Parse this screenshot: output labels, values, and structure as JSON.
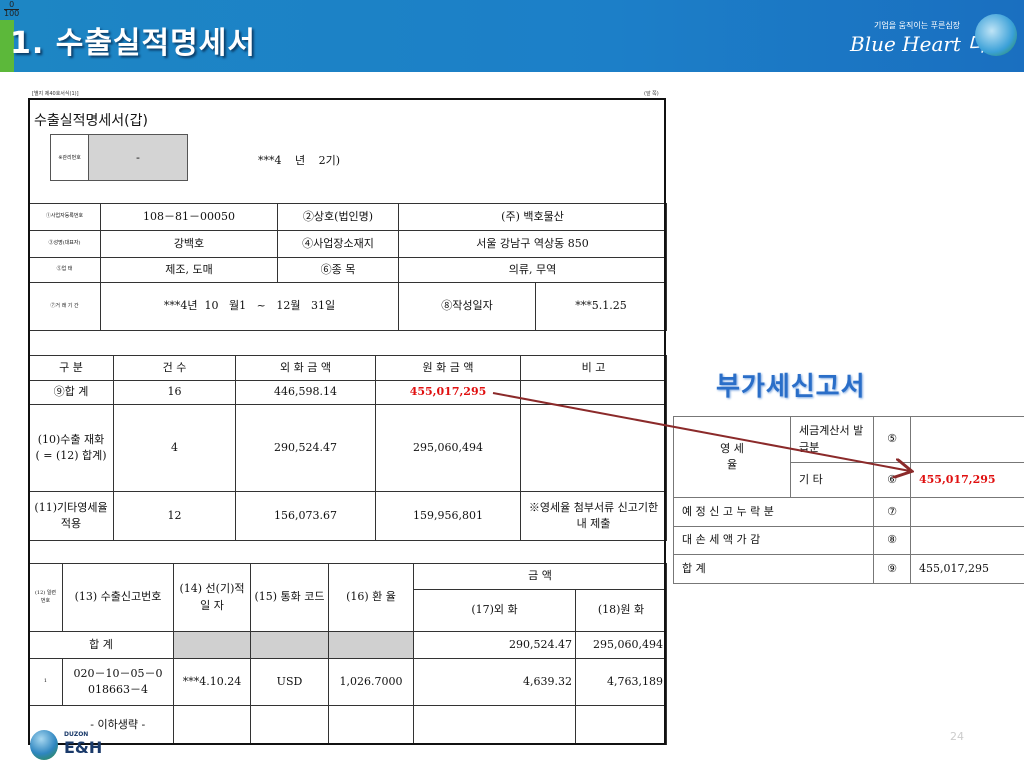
{
  "header": {
    "page_mark_top": "0",
    "page_mark_bottom": "100",
    "title": "1. 수출실적명세서",
    "logo_tagline": "기업을 움직이는 푸른심장",
    "logo_brand": "Blue Heart 더존"
  },
  "form": {
    "form_ref": "[별지 제40호서식(1)]",
    "page_side": "(앞 쪽)",
    "title": "수출실적명세서(갑)",
    "mgmt_label": "※관리번호",
    "mgmt_value": "-",
    "period": "***4 년 2기)",
    "info": {
      "biz_no_label": "①사업자등록번호",
      "biz_no": "108－81－00050",
      "company_label": "②상호(법인명)",
      "company": "(주) 백호물산",
      "name_label": "③성명(대표자)",
      "name": "강백호",
      "addr_label": "④사업장소재지",
      "addr": "서울 강남구 역상동 850",
      "type_label": "⑤업 태",
      "type": "제조, 도매",
      "item_label": "⑥종 목",
      "item": "의류, 무역",
      "period_label": "⑦거 래 기 간",
      "period": "***4년  10   월1   ~   12월   31일",
      "date_label": "⑧작성일자",
      "date": "***5.1.25"
    },
    "summary": {
      "headers": [
        "구 분",
        "건 수",
        "외 화 금 액",
        "원 화 금 액",
        "비 고"
      ],
      "rows": [
        [
          "⑨합 계",
          "16",
          "446,598.14",
          "455,017,295",
          ""
        ],
        [
          "(10)수출 재화\n( = (12) 합계)",
          "4",
          "290,524.47",
          "295,060,494",
          ""
        ],
        [
          "(11)기타영세율적용",
          "12",
          "156,073.67",
          "159,956,801",
          "※영세율 첨부서류 신고기한 내 제출"
        ]
      ]
    },
    "detail": {
      "h12": "(12) 일련 번호",
      "h13": "(13) 수출신고번호",
      "h14": "(14) 선(기)적 일 자",
      "h15": "(15) 통화 코드",
      "h16": "(16) 환 율",
      "h_amount": "금 액",
      "h17": "(17)외 화",
      "h18": "(18)원 화",
      "total_label": "합 계",
      "total_foreign": "290,524.47",
      "total_krw": "295,060,494",
      "row1": {
        "no": "1",
        "decl": "020－10－05－0 018663－4",
        "date": "***4.10.24",
        "currency": "USD",
        "rate": "1,026.7000",
        "foreign": "4,639.32",
        "krw": "4,763,189"
      },
      "omitted": "- 이하생략 -"
    }
  },
  "vat": {
    "title": "부가세신고서",
    "zero_rate": "영 세 율",
    "r1_label": "세금계산서 발급분",
    "r1_no": "⑤",
    "r1_val": "",
    "r2_label": "기 타",
    "r2_no": "⑥",
    "r2_val": "455,017,295",
    "r3_label": "예 정 신 고 누 락 분",
    "r3_no": "⑦",
    "r4_label": "대 손 세 액 가 감",
    "r4_no": "⑧",
    "r5_label": "합 계",
    "r5_no": "⑨",
    "r5_val": "455,017,295"
  },
  "footer": {
    "page_number": "24",
    "logo_small": "DUZON",
    "logo_big": "E&H"
  },
  "colors": {
    "banner": "#1d86c4",
    "highlight": "#e01010",
    "arrow": "#8b2a2a",
    "vat_title": "#2a6ec8"
  }
}
